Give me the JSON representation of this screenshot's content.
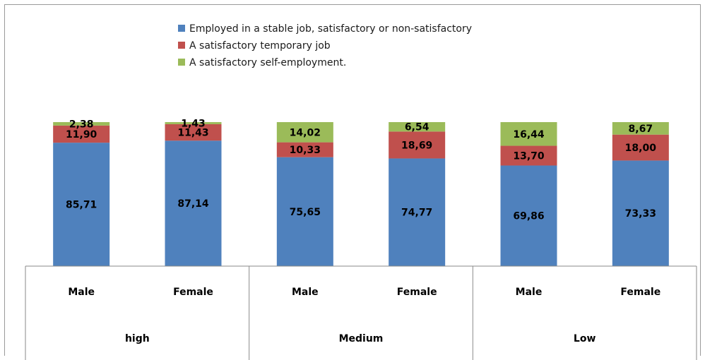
{
  "chart_data": {
    "type": "bar",
    "stacked": true,
    "percent": true,
    "groups": [
      "high",
      "Medium",
      "Low"
    ],
    "categories": [
      "Male",
      "Female",
      "Male",
      "Female",
      "Male",
      "Female"
    ],
    "category_group": [
      "high",
      "high",
      "Medium",
      "Medium",
      "Low",
      "Low"
    ],
    "series": [
      {
        "name": "Employed in a stable job, satisfactory or non-satisfactory",
        "color": "#4F81BD",
        "values": [
          85.71,
          87.14,
          75.65,
          74.77,
          69.86,
          73.33
        ],
        "labels": [
          "85,71",
          "87,14",
          "75,65",
          "74,77",
          "69,86",
          "73,33"
        ]
      },
      {
        "name": "A satisfactory temporary job",
        "color": "#C0504D",
        "values": [
          11.9,
          11.43,
          10.33,
          18.69,
          13.7,
          18.0
        ],
        "labels": [
          "11,90",
          "11,43",
          "10,33",
          "18,69",
          "13,70",
          "18,00"
        ]
      },
      {
        "name": "A satisfactory self-employment.",
        "color": "#9BBB59",
        "values": [
          2.38,
          1.43,
          14.02,
          6.54,
          16.44,
          8.67
        ],
        "labels": [
          "2,38",
          "1,43",
          "14,02",
          "6,54",
          "16,44",
          "8,67"
        ]
      }
    ],
    "legend_position": "top",
    "grid": false
  }
}
